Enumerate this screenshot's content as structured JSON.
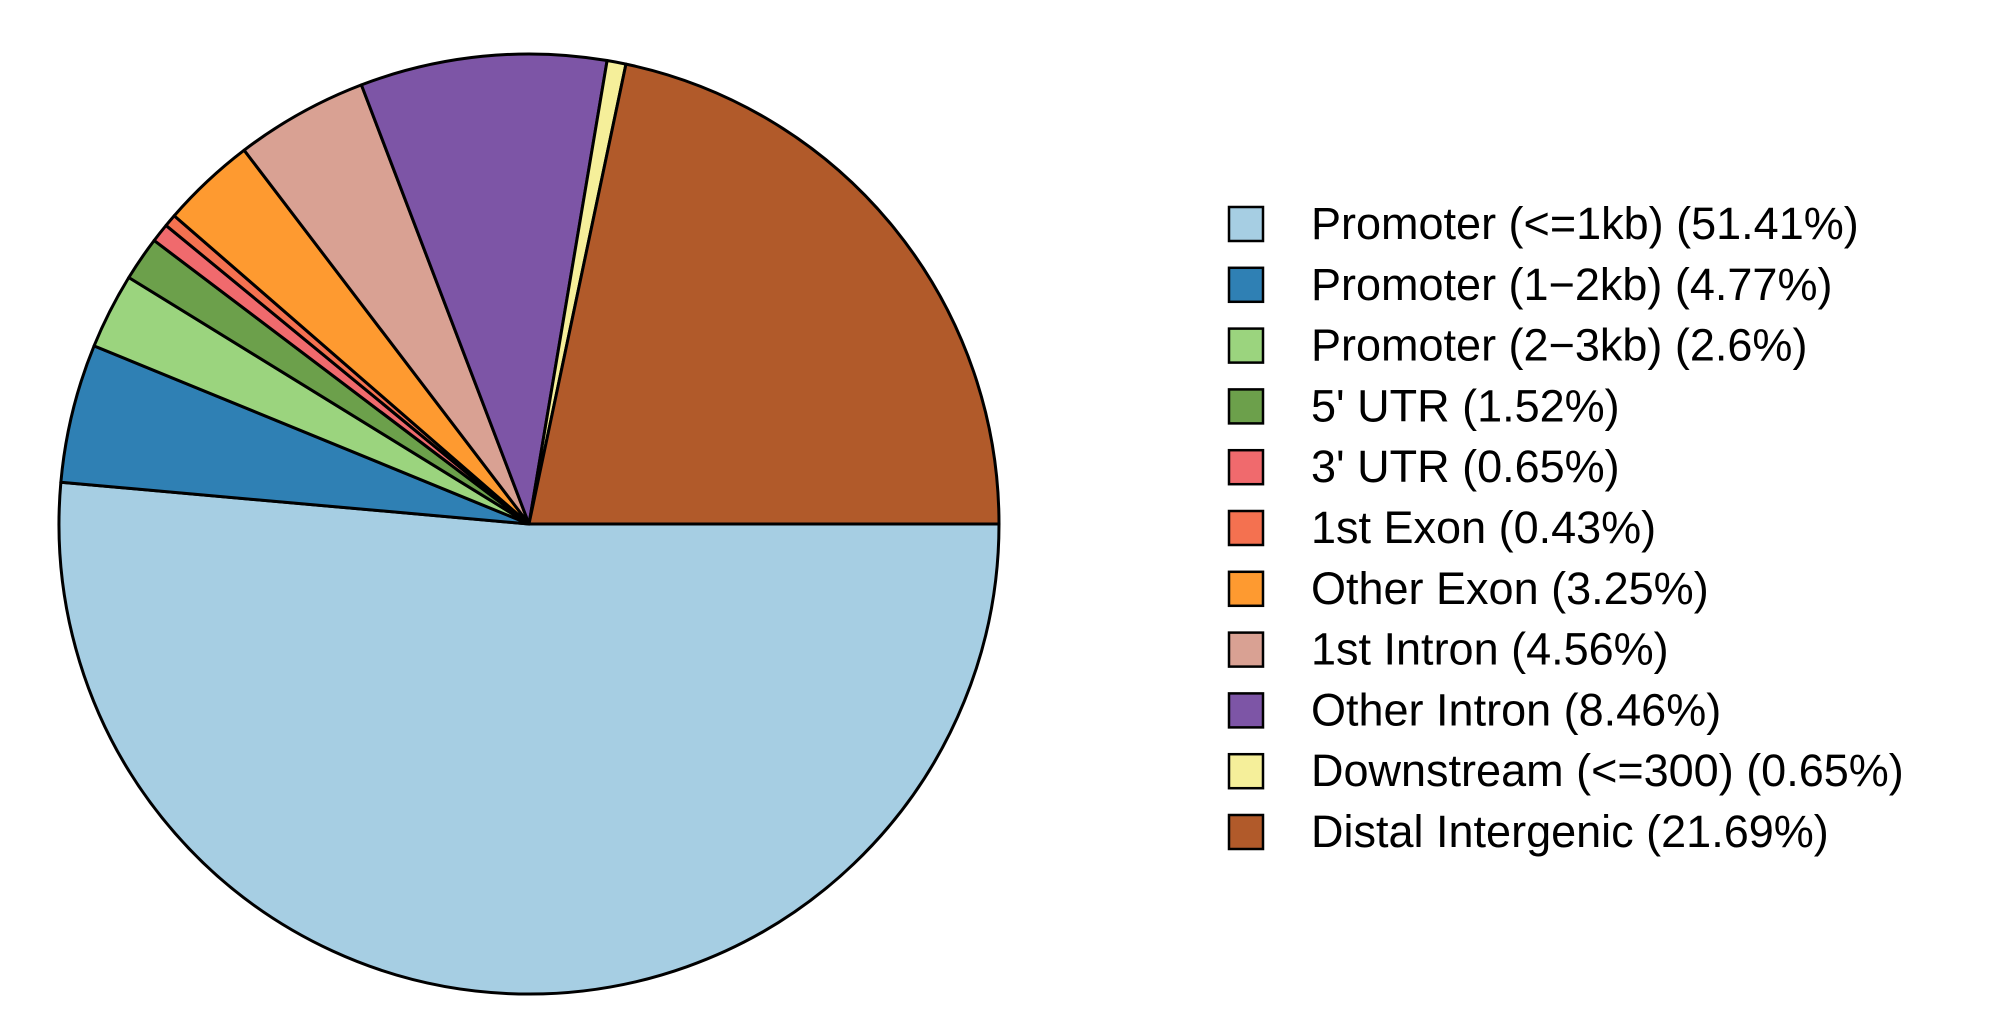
{
  "chart_data": {
    "type": "pie",
    "title": "",
    "start_angle_deg": 0,
    "direction": "clockwise",
    "legend_position": "right",
    "slices": [
      {
        "label": "Promoter (<=1kb) (51.41%)",
        "value": 51.41,
        "color": "#A6CEE3"
      },
      {
        "label": "Promoter (1−2kb) (4.77%)",
        "value": 4.77,
        "color": "#2F80B4"
      },
      {
        "label": "Promoter (2−3kb) (2.6%)",
        "value": 2.6,
        "color": "#9BD47E"
      },
      {
        "label": "5' UTR (1.52%)",
        "value": 1.52,
        "color": "#6CA04B"
      },
      {
        "label": "3' UTR (0.65%)",
        "value": 0.65,
        "color": "#F06A6D"
      },
      {
        "label": "1st Exon (0.43%)",
        "value": 0.43,
        "color": "#F47150"
      },
      {
        "label": "Other Exon (3.25%)",
        "value": 3.25,
        "color": "#FE9A30"
      },
      {
        "label": "1st Intron (4.56%)",
        "value": 4.56,
        "color": "#D9A193"
      },
      {
        "label": "Other Intron (8.46%)",
        "value": 8.46,
        "color": "#7D55A6"
      },
      {
        "label": "Downstream (<=300) (0.65%)",
        "value": 0.65,
        "color": "#F5EF9A"
      },
      {
        "label": "Distal Intergenic (21.69%)",
        "value": 21.69,
        "color": "#B15A2A"
      }
    ]
  }
}
